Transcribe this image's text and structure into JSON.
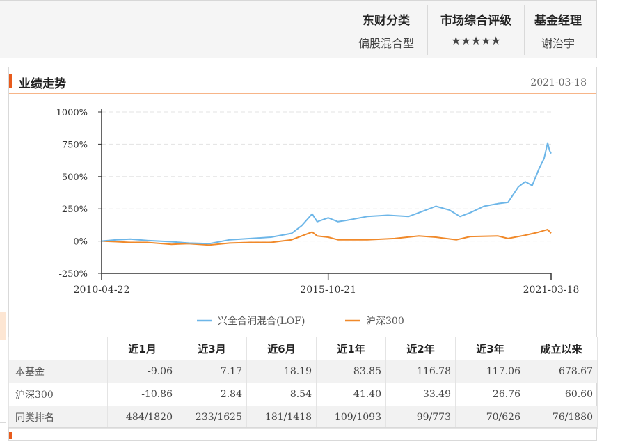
{
  "header": {
    "columns": [
      {
        "title": "东财分类",
        "value": "偏股混合型"
      },
      {
        "title": "市场综合评级",
        "value": "★★★★★"
      },
      {
        "title": "基金经理",
        "value": "谢治宇"
      }
    ]
  },
  "card": {
    "title": "业绩走势",
    "date": "2021-03-18"
  },
  "chart_data": {
    "type": "line",
    "yticks": [
      "1000%",
      "750%",
      "500%",
      "250%",
      "0%",
      "-250%"
    ],
    "ylim": [
      -250,
      1000
    ],
    "xticks": [
      "2010-04-22",
      "2015-10-21",
      "2021-03-18"
    ],
    "x_range": [
      "2010-04-22",
      "2021-03-18"
    ],
    "grid": "horizontal dashed",
    "legend_position": "bottom",
    "series": [
      {
        "name": "兴全合润混合(LOF)",
        "color": "#6db6e8",
        "x": [
          "2010-04-22",
          "2010-09-01",
          "2011-01-01",
          "2011-06-01",
          "2012-01-01",
          "2012-06-01",
          "2012-12-01",
          "2013-06-01",
          "2013-12-01",
          "2014-06-01",
          "2014-12-01",
          "2015-03-01",
          "2015-06-01",
          "2015-07-15",
          "2015-10-21",
          "2016-01-15",
          "2016-04-01",
          "2016-10-01",
          "2017-04-01",
          "2017-10-01",
          "2018-02-01",
          "2018-06-01",
          "2018-10-01",
          "2019-01-01",
          "2019-04-01",
          "2019-08-01",
          "2019-12-01",
          "2020-03-01",
          "2020-06-01",
          "2020-08-01",
          "2020-10-01",
          "2020-12-01",
          "2021-01-15",
          "2021-02-15",
          "2021-03-05",
          "2021-03-18"
        ],
        "values": [
          0,
          10,
          15,
          5,
          -5,
          -15,
          -20,
          10,
          20,
          30,
          60,
          120,
          210,
          150,
          180,
          150,
          160,
          190,
          200,
          190,
          230,
          270,
          240,
          190,
          220,
          270,
          290,
          300,
          420,
          460,
          430,
          560,
          640,
          760,
          700,
          679
        ]
      },
      {
        "name": "沪深300",
        "color": "#f0892a",
        "x": [
          "2010-04-22",
          "2010-09-01",
          "2011-01-01",
          "2011-06-01",
          "2012-01-01",
          "2012-06-01",
          "2012-12-01",
          "2013-06-01",
          "2013-12-01",
          "2014-06-01",
          "2014-12-01",
          "2015-03-01",
          "2015-06-01",
          "2015-07-15",
          "2015-10-21",
          "2016-01-15",
          "2016-10-01",
          "2017-06-01",
          "2018-01-01",
          "2018-06-01",
          "2018-12-01",
          "2019-04-01",
          "2019-12-01",
          "2020-03-01",
          "2020-08-01",
          "2020-12-01",
          "2021-02-15",
          "2021-03-18"
        ],
        "values": [
          0,
          -5,
          -10,
          -10,
          -25,
          -20,
          -30,
          -15,
          -10,
          -10,
          10,
          40,
          70,
          40,
          30,
          10,
          10,
          20,
          40,
          30,
          10,
          35,
          40,
          20,
          45,
          70,
          90,
          61
        ]
      }
    ]
  },
  "perf_table": {
    "headers": [
      "",
      "近1月",
      "近3月",
      "近6月",
      "近1年",
      "近2年",
      "近3年",
      "成立以来"
    ],
    "rows": [
      [
        "本基金",
        "-9.06",
        "7.17",
        "18.19",
        "83.85",
        "116.78",
        "117.06",
        "678.67"
      ],
      [
        "沪深300",
        "-10.86",
        "2.84",
        "8.54",
        "41.40",
        "33.49",
        "26.76",
        "60.60"
      ],
      [
        "同类排名",
        "484/1820",
        "233/1625",
        "181/1418",
        "109/1093",
        "99/773",
        "70/626",
        "76/1880"
      ]
    ]
  }
}
